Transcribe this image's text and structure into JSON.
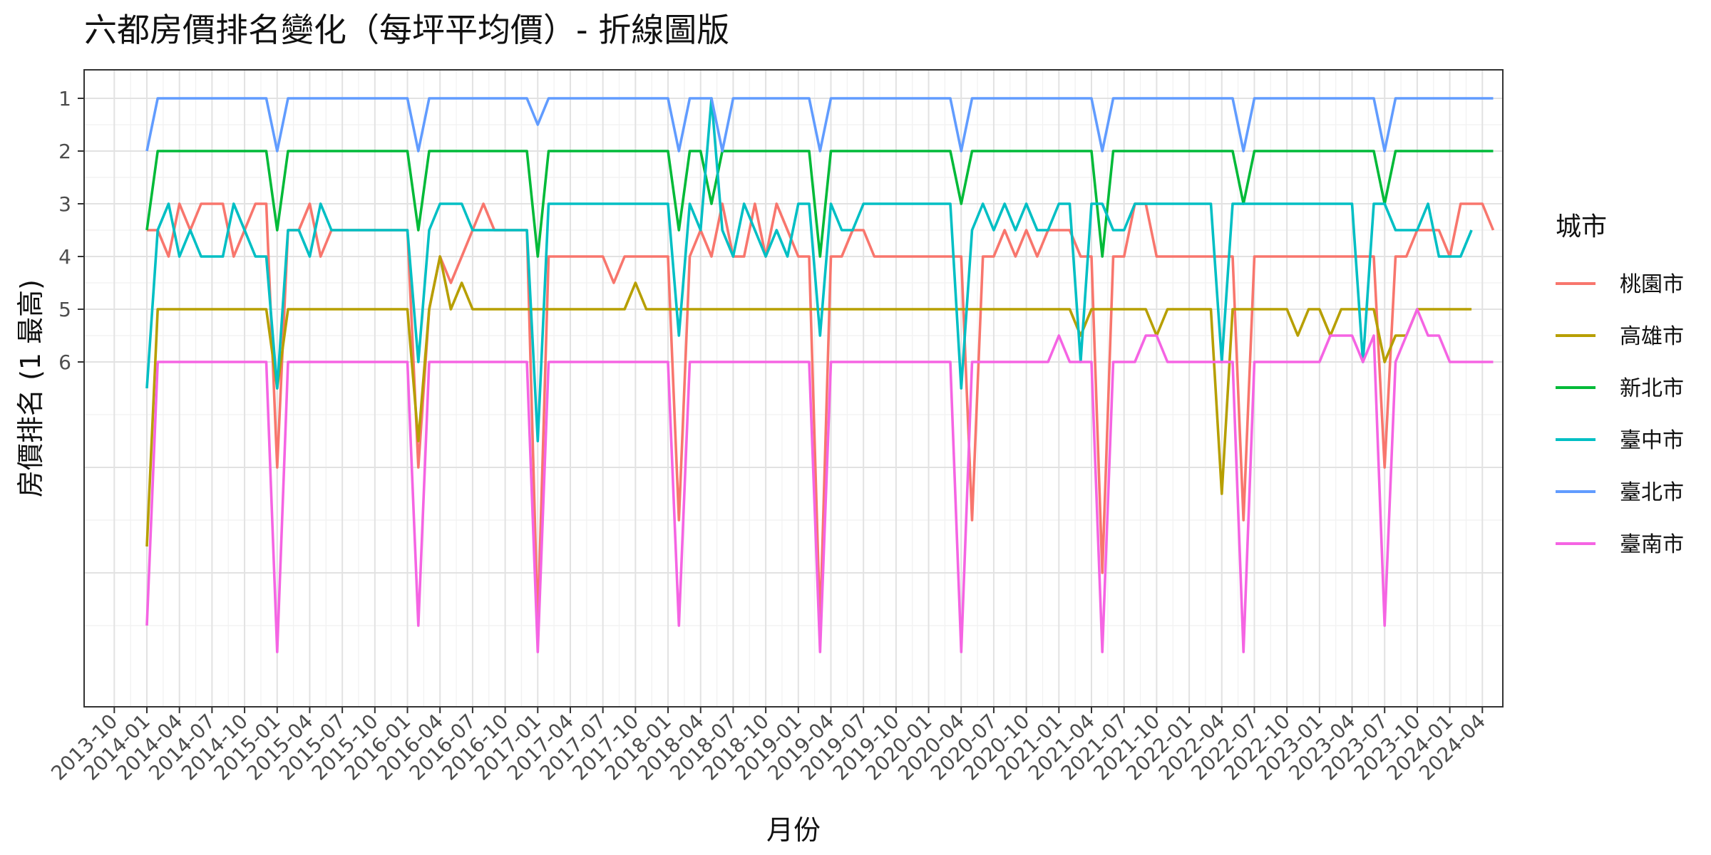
{
  "chart_data": {
    "type": "line",
    "title": "六都房價排名變化（每坪平均價）- 折線圖版",
    "xlabel": "月份",
    "ylabel": "房價排名 (1 最高)",
    "x_start": "2014-01",
    "y_ticks": [
      1,
      2,
      3,
      4,
      5,
      6
    ],
    "ylim": [
      1,
      11.5
    ],
    "y_reversed": true,
    "x_ticks": [
      "2013-10",
      "2014-01",
      "2014-04",
      "2014-07",
      "2014-10",
      "2015-01",
      "2015-04",
      "2015-07",
      "2015-10",
      "2016-01",
      "2016-04",
      "2016-07",
      "2016-10",
      "2017-01",
      "2017-04",
      "2017-07",
      "2017-10",
      "2018-01",
      "2018-04",
      "2018-07",
      "2018-10",
      "2019-01",
      "2019-04",
      "2019-07",
      "2019-10",
      "2020-01",
      "2020-04",
      "2020-07",
      "2020-10",
      "2021-01",
      "2021-04",
      "2021-07",
      "2021-10",
      "2022-01",
      "2022-04",
      "2022-07",
      "2022-10",
      "2023-01",
      "2023-04",
      "2023-07",
      "2023-10",
      "2024-01",
      "2024-04"
    ],
    "grid": true,
    "legend_title": "城市",
    "legend_position": "right",
    "series": [
      {
        "name": "桃園市",
        "color": "#F8766D",
        "values": [
          3.5,
          3.5,
          4,
          3,
          3.5,
          3,
          3,
          3,
          4,
          3.5,
          3,
          3,
          8,
          3.5,
          3.5,
          3,
          4,
          3.5,
          3.5,
          3.5,
          3.5,
          3.5,
          3.5,
          3.5,
          3.5,
          8,
          5,
          4,
          4.5,
          4,
          3.5,
          3,
          3.5,
          3.5,
          3.5,
          3.5,
          11,
          4,
          4,
          4,
          4,
          4,
          4,
          4.5,
          4,
          4,
          4,
          4,
          4,
          9,
          4,
          3.5,
          4,
          3,
          4,
          4,
          3,
          4,
          3,
          3.5,
          4,
          4,
          11,
          4,
          4,
          3.5,
          3.5,
          4,
          4,
          4,
          4,
          4,
          4,
          4,
          4,
          4,
          9,
          4,
          4,
          3.5,
          4,
          3.5,
          4,
          3.5,
          3.5,
          3.5,
          4,
          4,
          10,
          4,
          4,
          3,
          3,
          4,
          4,
          4,
          4,
          4,
          4,
          4,
          4,
          9,
          4,
          4,
          4,
          4,
          4,
          4,
          4,
          4,
          4,
          4,
          4,
          4,
          8,
          4,
          4,
          3.5,
          3.5,
          3.5,
          4,
          3,
          3,
          3,
          3.5
        ]
      },
      {
        "name": "高雄市",
        "color": "#B79F00",
        "values": [
          9.5,
          5,
          5,
          5,
          5,
          5,
          5,
          5,
          5,
          5,
          5,
          5,
          6.5,
          5,
          5,
          5,
          5,
          5,
          5,
          5,
          5,
          5,
          5,
          5,
          5,
          7.5,
          5,
          4,
          5,
          4.5,
          5,
          5,
          5,
          5,
          5,
          5,
          5,
          5,
          5,
          5,
          5,
          5,
          5,
          5,
          5,
          4.5,
          5,
          5,
          5,
          5,
          5,
          5,
          5,
          5,
          5,
          5,
          5,
          5,
          5,
          5,
          5,
          5,
          5,
          5,
          5,
          5,
          5,
          5,
          5,
          5,
          5,
          5,
          5,
          5,
          5,
          5,
          5,
          5,
          5,
          5,
          5,
          5,
          5,
          5,
          5,
          5,
          5.5,
          5,
          5,
          5,
          5,
          5,
          5,
          5.5,
          5,
          5,
          5,
          5,
          5,
          8.5,
          5,
          5,
          5,
          5,
          5,
          5,
          5.5,
          5,
          5,
          5.5,
          5,
          5,
          5,
          5,
          6,
          5.5,
          5.5,
          5,
          5,
          5,
          5,
          5,
          5
        ]
      },
      {
        "name": "新北市",
        "color": "#00BA38",
        "values": [
          3.5,
          2,
          2,
          2,
          2,
          2,
          2,
          2,
          2,
          2,
          2,
          2,
          3.5,
          2,
          2,
          2,
          2,
          2,
          2,
          2,
          2,
          2,
          2,
          2,
          2,
          3.5,
          2,
          2,
          2,
          2,
          2,
          2,
          2,
          2,
          2,
          2,
          4,
          2,
          2,
          2,
          2,
          2,
          2,
          2,
          2,
          2,
          2,
          2,
          2,
          3.5,
          2,
          2,
          3,
          2,
          2,
          2,
          2,
          2,
          2,
          2,
          2,
          2,
          4,
          2,
          2,
          2,
          2,
          2,
          2,
          2,
          2,
          2,
          2,
          2,
          2,
          3,
          2,
          2,
          2,
          2,
          2,
          2,
          2,
          2,
          2,
          2,
          2,
          2,
          4,
          2,
          2,
          2,
          2,
          2,
          2,
          2,
          2,
          2,
          2,
          2,
          2,
          3,
          2,
          2,
          2,
          2,
          2,
          2,
          2,
          2,
          2,
          2,
          2,
          2,
          3,
          2,
          2,
          2,
          2,
          2,
          2,
          2,
          2,
          2,
          2
        ]
      },
      {
        "name": "臺中市",
        "color": "#00BFC4",
        "values": [
          6.5,
          3.5,
          3,
          4,
          3.5,
          4,
          4,
          4,
          3,
          3.5,
          4,
          4,
          6.5,
          3.5,
          3.5,
          4,
          3,
          3.5,
          3.5,
          3.5,
          3.5,
          3.5,
          3.5,
          3.5,
          3.5,
          6,
          3.5,
          3,
          3,
          3,
          3.5,
          3.5,
          3.5,
          3.5,
          3.5,
          3.5,
          7.5,
          3,
          3,
          3,
          3,
          3,
          3,
          3,
          3,
          3,
          3,
          3,
          3,
          5.5,
          3,
          3.5,
          1,
          3.5,
          4,
          3,
          3.5,
          4,
          3.5,
          4,
          3,
          3,
          5.5,
          3,
          3.5,
          3.5,
          3,
          3,
          3,
          3,
          3,
          3,
          3,
          3,
          3,
          6.5,
          3.5,
          3,
          3.5,
          3,
          3.5,
          3,
          3.5,
          3.5,
          3,
          3,
          6,
          3,
          3,
          3.5,
          3.5,
          3,
          3,
          3,
          3,
          3,
          3,
          3,
          3,
          6,
          3,
          3,
          3,
          3,
          3,
          3,
          3,
          3,
          3,
          3,
          3,
          3,
          6,
          3,
          3,
          3.5,
          3.5,
          3.5,
          3,
          4,
          4,
          4,
          3.5
        ]
      },
      {
        "name": "臺北市",
        "color": "#619CFF",
        "values": [
          2,
          1,
          1,
          1,
          1,
          1,
          1,
          1,
          1,
          1,
          1,
          1,
          2,
          1,
          1,
          1,
          1,
          1,
          1,
          1,
          1,
          1,
          1,
          1,
          1,
          2,
          1,
          1,
          1,
          1,
          1,
          1,
          1,
          1,
          1,
          1,
          1.5,
          1,
          1,
          1,
          1,
          1,
          1,
          1,
          1,
          1,
          1,
          1,
          1,
          2,
          1,
          1,
          1,
          2,
          1,
          1,
          1,
          1,
          1,
          1,
          1,
          1,
          2,
          1,
          1,
          1,
          1,
          1,
          1,
          1,
          1,
          1,
          1,
          1,
          1,
          2,
          1,
          1,
          1,
          1,
          1,
          1,
          1,
          1,
          1,
          1,
          1,
          1,
          2,
          1,
          1,
          1,
          1,
          1,
          1,
          1,
          1,
          1,
          1,
          1,
          1,
          2,
          1,
          1,
          1,
          1,
          1,
          1,
          1,
          1,
          1,
          1,
          1,
          1,
          2,
          1,
          1,
          1,
          1,
          1,
          1,
          1,
          1,
          1,
          1
        ]
      },
      {
        "name": "臺南市",
        "color": "#F564E3",
        "values": [
          11,
          6,
          6,
          6,
          6,
          6,
          6,
          6,
          6,
          6,
          6,
          6,
          11.5,
          6,
          6,
          6,
          6,
          6,
          6,
          6,
          6,
          6,
          6,
          6,
          6,
          11,
          6,
          6,
          6,
          6,
          6,
          6,
          6,
          6,
          6,
          6,
          11.5,
          6,
          6,
          6,
          6,
          6,
          6,
          6,
          6,
          6,
          6,
          6,
          6,
          11,
          6,
          6,
          6,
          6,
          6,
          6,
          6,
          6,
          6,
          6,
          6,
          6,
          11.5,
          6,
          6,
          6,
          6,
          6,
          6,
          6,
          6,
          6,
          6,
          6,
          6,
          11.5,
          6,
          6,
          6,
          6,
          6,
          6,
          6,
          6,
          5.5,
          6,
          6,
          6,
          11.5,
          6,
          6,
          6,
          5.5,
          5.5,
          6,
          6,
          6,
          6,
          6,
          6,
          6,
          11.5,
          6,
          6,
          6,
          6,
          6,
          6,
          6,
          5.5,
          5.5,
          5.5,
          6,
          5.5,
          11,
          6,
          5.5,
          5,
          5.5,
          5.5,
          6,
          6,
          6,
          6,
          6
        ]
      }
    ]
  }
}
